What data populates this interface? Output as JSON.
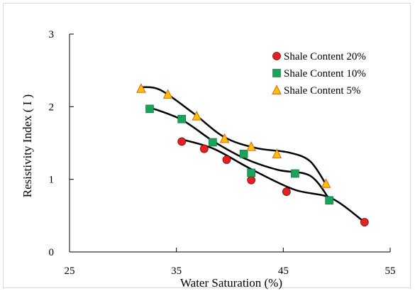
{
  "chart_data": {
    "type": "scatter",
    "title": "",
    "xlabel": "Water Saturation (%)",
    "ylabel": "Resistivity Index ( I )",
    "xlim": [
      25,
      55
    ],
    "ylim": [
      0,
      3
    ],
    "xticks": [
      25,
      35,
      45,
      55
    ],
    "yticks": [
      0,
      1,
      2,
      3
    ],
    "grid": false,
    "legend_position": "top-right",
    "series": [
      {
        "name": "Shale Content 20%",
        "marker": "circle",
        "color": "#e32121",
        "x": [
          35.5,
          37.6,
          39.7,
          42.0,
          45.3,
          52.6
        ],
        "y": [
          1.52,
          1.42,
          1.27,
          0.99,
          0.83,
          0.41
        ],
        "trend_x": [
          35.5,
          38.5,
          42.0,
          46.0,
          49.5,
          52.6
        ],
        "trend_y": [
          1.55,
          1.42,
          1.14,
          0.86,
          0.74,
          0.41
        ]
      },
      {
        "name": "Shale Content 10%",
        "marker": "square",
        "color": "#1aa35a",
        "x": [
          32.5,
          35.5,
          38.4,
          41.3,
          42.0,
          46.1,
          49.3
        ],
        "y": [
          1.97,
          1.83,
          1.51,
          1.35,
          1.09,
          1.08,
          0.71
        ],
        "trend_x": [
          32.5,
          35.5,
          38.5,
          41.5,
          44.5,
          47.5,
          49.3
        ],
        "trend_y": [
          1.99,
          1.82,
          1.52,
          1.28,
          1.13,
          1.05,
          0.73
        ]
      },
      {
        "name": "Shale Content 5%",
        "marker": "triangle",
        "color": "#ffc000",
        "x": [
          31.7,
          34.2,
          36.9,
          39.5,
          42.0,
          44.4,
          49.0
        ],
        "y": [
          2.25,
          2.17,
          1.87,
          1.56,
          1.45,
          1.35,
          0.94
        ],
        "trend_x": [
          31.7,
          33.5,
          36.5,
          39.5,
          42.5,
          45.5,
          47.5,
          49.0
        ],
        "trend_y": [
          2.27,
          2.23,
          1.92,
          1.58,
          1.43,
          1.37,
          1.25,
          0.93
        ]
      }
    ]
  }
}
